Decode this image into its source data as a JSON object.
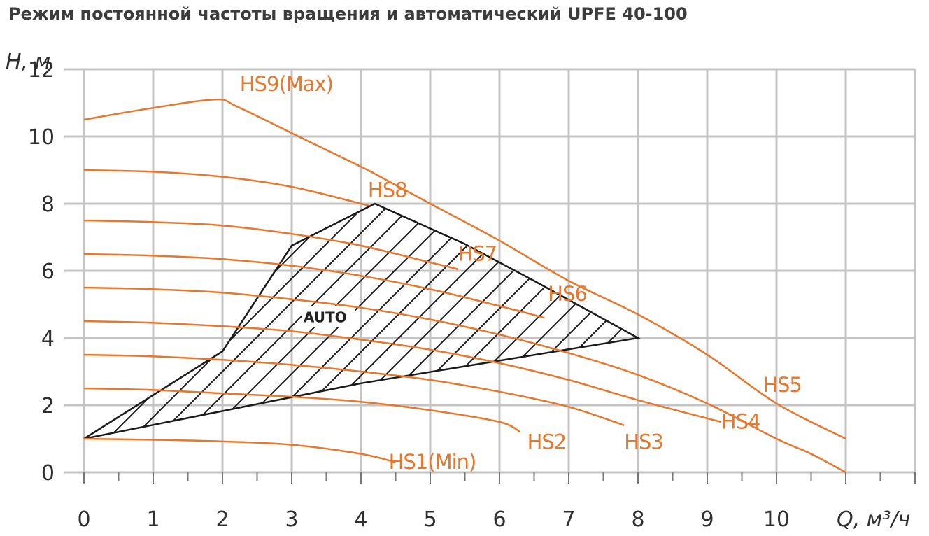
{
  "title": "Режим постоянной частоты вращения и автоматический  UPFE 40-100",
  "chart_data": {
    "type": "line",
    "title": "Режим постоянной частоты вращения и автоматический  UPFE 40-100",
    "xlabel": "Q, м³/ч",
    "ylabel": "H, м",
    "xlim": [
      0,
      12
    ],
    "ylim": [
      0,
      12
    ],
    "x_ticks": [
      "0",
      "1",
      "2",
      "3",
      "4",
      "5",
      "6",
      "7",
      "8",
      "9",
      "10"
    ],
    "y_ticks": [
      "0",
      "2",
      "4",
      "6",
      "8",
      "10",
      "12"
    ],
    "grid": true,
    "curve_color": "#e8772e",
    "series": [
      {
        "name": "HS9(Max)",
        "points": [
          [
            0,
            10.5
          ],
          [
            1,
            10.85
          ],
          [
            1.9,
            11.1
          ],
          [
            2.2,
            10.9
          ],
          [
            3,
            10.1
          ],
          [
            4.1,
            9.0
          ]
        ]
      },
      {
        "name": "HS8",
        "points": [
          [
            0,
            9.0
          ],
          [
            1,
            8.95
          ],
          [
            2,
            8.8
          ],
          [
            3,
            8.5
          ],
          [
            4,
            8.0
          ],
          [
            4.1,
            7.95
          ]
        ]
      },
      {
        "name": "HS7",
        "points": [
          [
            0,
            7.5
          ],
          [
            1,
            7.45
          ],
          [
            2,
            7.35
          ],
          [
            3,
            7.1
          ],
          [
            4,
            6.75
          ],
          [
            5,
            6.25
          ],
          [
            5.4,
            6.05
          ]
        ]
      },
      {
        "name": "HS6",
        "points": [
          [
            0,
            6.5
          ],
          [
            1,
            6.45
          ],
          [
            2,
            6.35
          ],
          [
            3,
            6.15
          ],
          [
            4,
            5.85
          ],
          [
            5,
            5.45
          ],
          [
            6,
            4.95
          ],
          [
            6.65,
            4.6
          ]
        ]
      },
      {
        "name": "HS5",
        "points": [
          [
            0,
            5.5
          ],
          [
            1,
            5.45
          ],
          [
            2,
            5.35
          ],
          [
            3,
            5.15
          ],
          [
            4,
            4.9
          ],
          [
            5,
            4.55
          ],
          [
            6,
            4.1
          ],
          [
            7,
            3.55
          ],
          [
            8,
            2.9
          ],
          [
            9,
            2.05
          ],
          [
            10,
            1.0
          ],
          [
            10.5,
            0.55
          ],
          [
            11,
            0.0
          ]
        ]
      },
      {
        "name": "HS4",
        "points": [
          [
            0,
            4.5
          ],
          [
            1,
            4.45
          ],
          [
            2,
            4.35
          ],
          [
            3,
            4.2
          ],
          [
            4,
            3.95
          ],
          [
            5,
            3.65
          ],
          [
            6,
            3.25
          ],
          [
            7,
            2.75
          ],
          [
            8,
            2.15
          ],
          [
            9.2,
            1.5
          ]
        ]
      },
      {
        "name": "HS3",
        "points": [
          [
            0,
            3.5
          ],
          [
            1,
            3.45
          ],
          [
            2,
            3.35
          ],
          [
            3,
            3.2
          ],
          [
            4,
            3.0
          ],
          [
            5,
            2.75
          ],
          [
            6,
            2.4
          ],
          [
            7,
            1.95
          ],
          [
            7.8,
            1.4
          ]
        ]
      },
      {
        "name": "HS2",
        "points": [
          [
            0,
            2.5
          ],
          [
            1,
            2.45
          ],
          [
            2,
            2.35
          ],
          [
            3,
            2.25
          ],
          [
            4,
            2.1
          ],
          [
            5,
            1.85
          ],
          [
            6,
            1.5
          ],
          [
            6.3,
            1.2
          ]
        ]
      },
      {
        "name": "HS1(Min)",
        "points": [
          [
            0,
            1.0
          ],
          [
            1,
            0.97
          ],
          [
            2,
            0.92
          ],
          [
            3,
            0.82
          ],
          [
            4,
            0.55
          ],
          [
            4.5,
            0.3
          ]
        ]
      }
    ],
    "hs9_tail": [
      [
        4.1,
        9.0
      ],
      [
        5,
        8.0
      ],
      [
        6,
        6.9
      ],
      [
        7,
        5.7
      ],
      [
        8,
        4.7
      ],
      [
        9,
        3.5
      ],
      [
        10,
        2.05
      ],
      [
        11,
        1.0
      ]
    ],
    "auto_region": {
      "label": "AUTO",
      "polygon": [
        [
          0,
          1.0
        ],
        [
          2,
          3.6
        ],
        [
          3,
          6.75
        ],
        [
          4.2,
          8.0
        ],
        [
          5.5,
          6.8
        ],
        [
          6.5,
          5.7
        ],
        [
          8,
          4.0
        ],
        [
          4,
          2.65
        ]
      ]
    },
    "label_positions": {
      "HS9(Max)": [
        2.25,
        11.35
      ],
      "HS8": [
        4.1,
        8.2
      ],
      "HS7": [
        5.4,
        6.3
      ],
      "HS6": [
        6.7,
        5.1
      ],
      "HS5": [
        9.8,
        2.4
      ],
      "HS4": [
        9.2,
        1.3
      ],
      "HS3": [
        7.8,
        0.7
      ],
      "HS2": [
        6.4,
        0.7
      ],
      "HS1(Min)": [
        4.4,
        0.1
      ]
    }
  }
}
